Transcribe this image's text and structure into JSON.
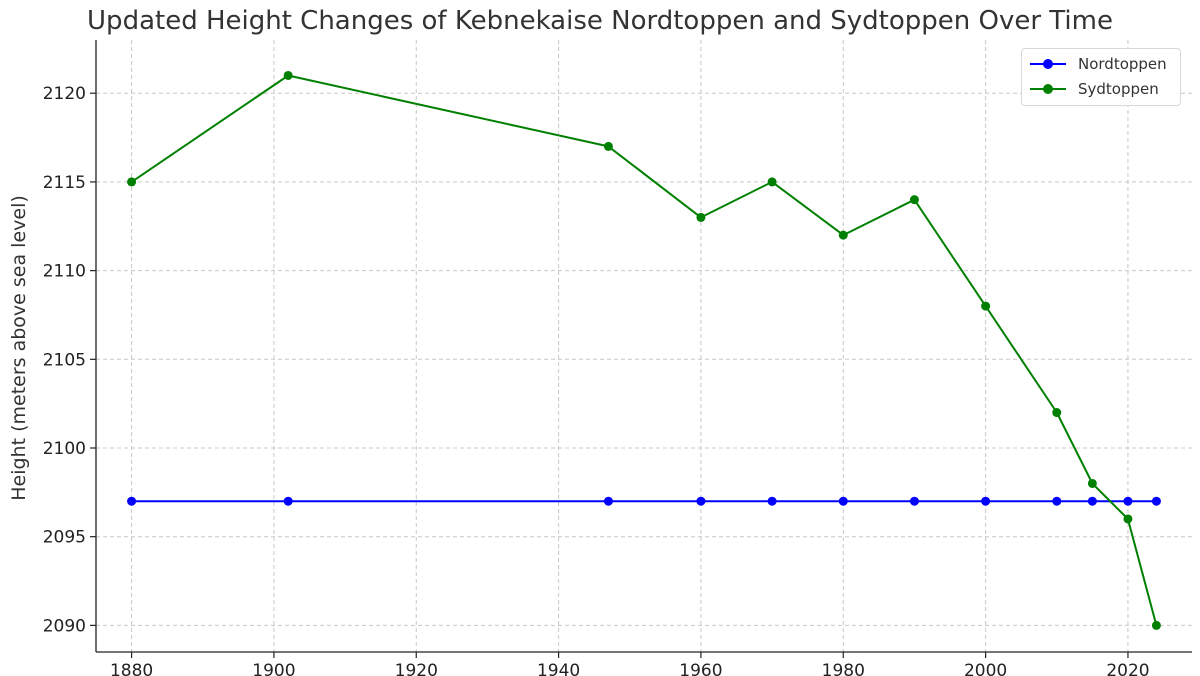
{
  "chart_data": {
    "type": "line",
    "title": "Updated Height Changes of Kebnekaise Nordtoppen and Sydtoppen Over Time",
    "xlabel": "",
    "ylabel": "Height (meters above sea level)",
    "xlim": [
      1875,
      2029
    ],
    "ylim": [
      2088.5,
      2123
    ],
    "xticks": [
      1880,
      1900,
      1920,
      1940,
      1960,
      1980,
      2000,
      2020
    ],
    "yticks": [
      2090,
      2095,
      2100,
      2105,
      2110,
      2115,
      2120
    ],
    "grid": true,
    "legend_position": "top-right",
    "series": [
      {
        "name": "Nordtoppen",
        "color": "#0000ff",
        "x": [
          1880,
          1902,
          1947,
          1960,
          1970,
          1980,
          1990,
          2000,
          2010,
          2015,
          2020,
          2024
        ],
        "y": [
          2097,
          2097,
          2097,
          2097,
          2097,
          2097,
          2097,
          2097,
          2097,
          2097,
          2097,
          2097
        ]
      },
      {
        "name": "Sydtoppen",
        "color": "#008000",
        "x": [
          1880,
          1902,
          1947,
          1960,
          1970,
          1980,
          1990,
          2000,
          2010,
          2015,
          2020,
          2024
        ],
        "y": [
          2115,
          2121,
          2117,
          2113,
          2115,
          2112,
          2114,
          2108,
          2102,
          2098,
          2096,
          2090
        ]
      }
    ]
  }
}
